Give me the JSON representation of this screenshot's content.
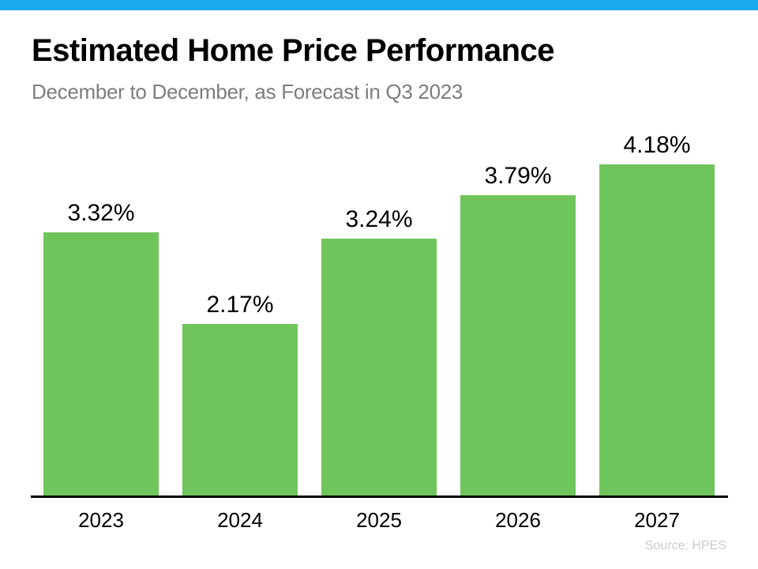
{
  "page": {
    "top_bar_color": "#1AA9EC",
    "background": "#FFFFFF"
  },
  "header": {
    "title": "Estimated Home Price Performance",
    "subtitle": "December to December, as Forecast in Q3 2023"
  },
  "footer": {
    "source": "Source: HPES"
  },
  "chart_data": {
    "type": "bar",
    "categories": [
      "2023",
      "2024",
      "2025",
      "2026",
      "2027"
    ],
    "values": [
      3.32,
      2.17,
      3.24,
      3.79,
      4.18
    ],
    "value_labels": [
      "3.32%",
      "2.17%",
      "3.24%",
      "3.79%",
      "4.18%"
    ],
    "title": "Estimated Home Price Performance",
    "subtitle": "December to December, as Forecast in Q3 2023",
    "xlabel": "",
    "ylabel": "",
    "ylim": [
      0,
      4.5
    ],
    "grid": false,
    "legend": false,
    "bar_color": "#6FC55B",
    "axis_color": "#000000",
    "label_color": "#000000",
    "source": "Source: HPES"
  }
}
